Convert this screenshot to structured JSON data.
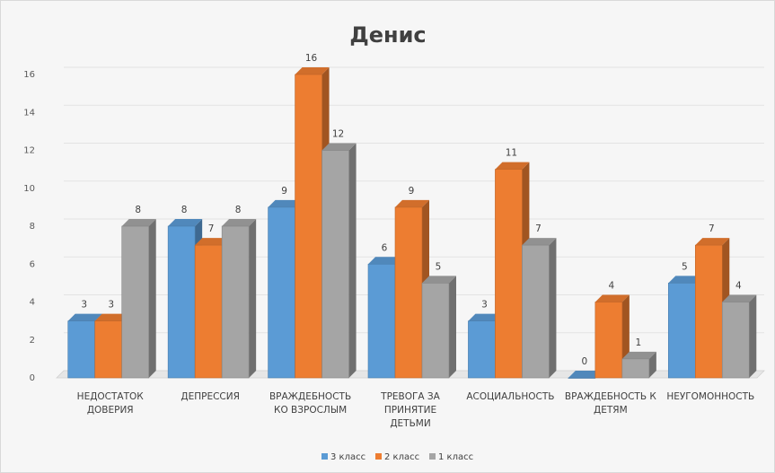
{
  "chart_data": {
    "type": "bar",
    "title": "Денис",
    "categories": [
      "НЕДОСТАТОК\nДОВЕРИЯ",
      "ДЕПРЕССИЯ",
      "ВРАЖДЕБНОСТЬ\nКО ВЗРОСЛЫМ",
      "ТРЕВОГА ЗА\nПРИНЯТИЕ\nДЕТЬМИ",
      "АСОЦИАЛЬНОСТЬ",
      "ВРАЖДЕБНОСТЬ К\nДЕТЯМ",
      "НЕУГОМОННОСТЬ"
    ],
    "series": [
      {
        "name": "3 класс",
        "color": "#5b9bd5",
        "values": [
          3,
          8,
          9,
          6,
          3,
          0,
          5
        ]
      },
      {
        "name": "2 класс",
        "color": "#ed7d31",
        "values": [
          3,
          7,
          16,
          9,
          11,
          4,
          7
        ]
      },
      {
        "name": "1 класс",
        "color": "#a5a5a5",
        "values": [
          8,
          8,
          12,
          5,
          7,
          1,
          4
        ]
      }
    ],
    "ylim": [
      0,
      16
    ],
    "yticks": [
      0,
      2,
      4,
      6,
      8,
      10,
      12,
      14,
      16
    ],
    "grid": true,
    "legend": "bottom",
    "style": "3d-clustered-column"
  }
}
